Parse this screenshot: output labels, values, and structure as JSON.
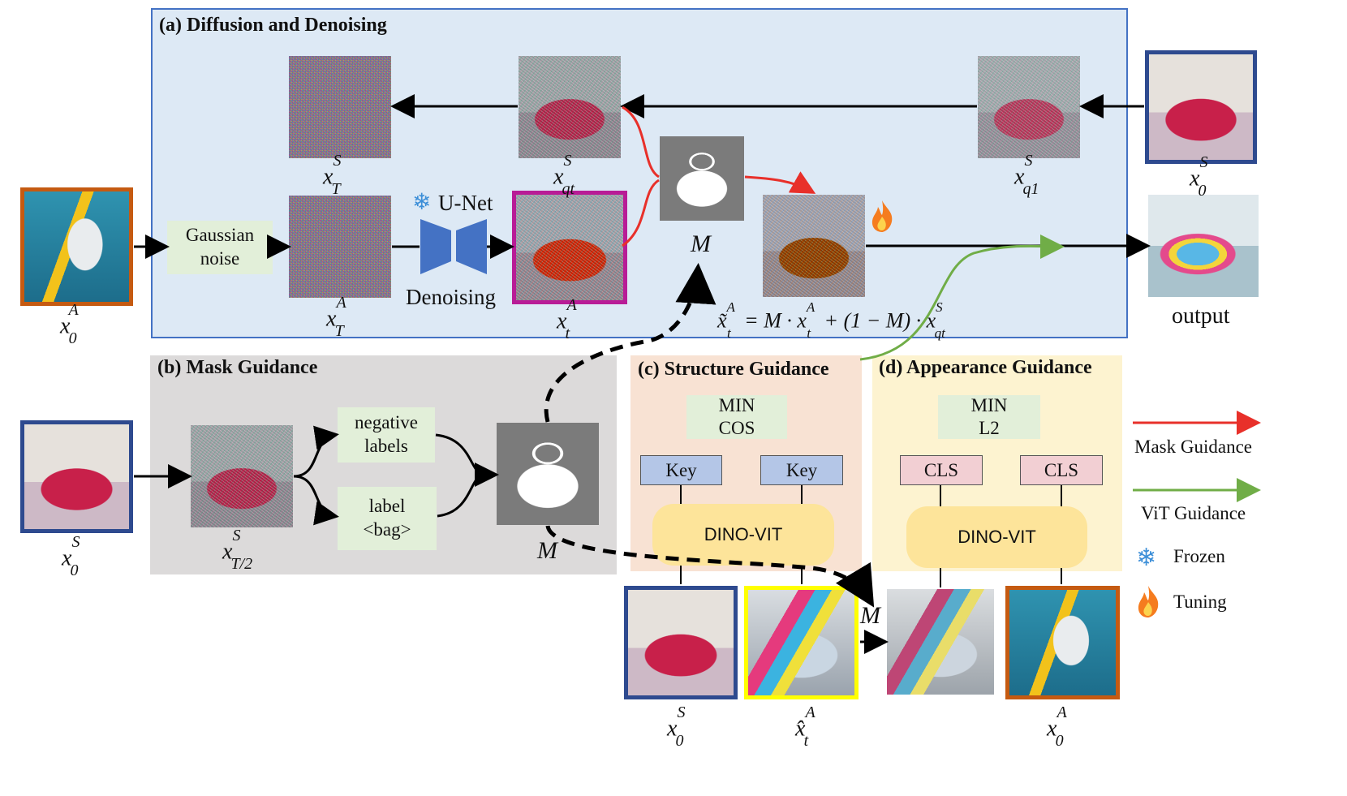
{
  "panels": {
    "a_title": "(a) Diffusion and Denoising",
    "b_title": "(b) Mask Guidance",
    "c_title": "(c) Structure Guidance",
    "d_title": "(d) Appearance Guidance"
  },
  "nodes": {
    "gaussian_noise": "Gaussian noise",
    "unet": "U-Net",
    "denoising": "Denoising",
    "negative_labels": "negative labels",
    "label_bag_line1": "label",
    "label_bag_line2": "<bag>",
    "min_cos_line1": "MIN",
    "min_cos_line2": "COS",
    "min_l2_line1": "MIN",
    "min_l2_line2": "L2",
    "key": "Key",
    "cls": "CLS",
    "dino_vit": "DINO-VIT",
    "output": "output"
  },
  "math": {
    "x0A": "x",
    "M": "M",
    "equation": "x̃ = M · x + (1 − M) · x"
  },
  "legend": {
    "mask_guidance": "Mask Guidance",
    "vit_guidance": "ViT Guidance",
    "frozen": "Frozen",
    "tuning": "Tuning",
    "mask_color": "#e8302a",
    "vit_color": "#70ad47",
    "frozen_icon": "snowflake-icon",
    "tuning_icon": "flame-icon"
  },
  "colors": {
    "panel_a_bg": "#dde9f5",
    "panel_a_border": "#4472c4",
    "panel_b_bg": "#dcdada",
    "panel_c_bg": "#f8e2d3",
    "panel_d_bg": "#fdf3d0",
    "source_border": "#2e4a8f",
    "appearance_border": "#c55a11",
    "target_border": "#7030a0",
    "hat_border": "#ffff00"
  }
}
